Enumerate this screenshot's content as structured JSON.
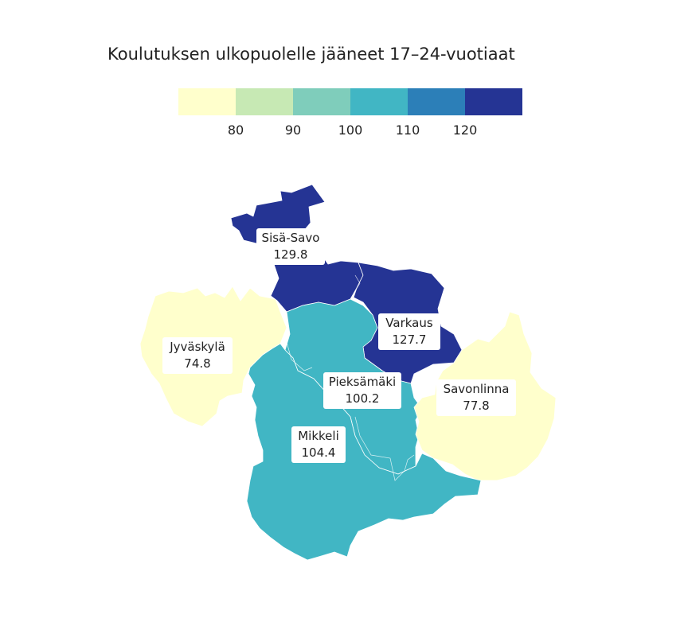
{
  "title": "Koulutuksen ulkopuolelle jääneet 17–24-vuotiaat",
  "legend": {
    "colors": [
      "#ffffcc",
      "#c7e9b4",
      "#7fcdbb",
      "#41b6c4",
      "#2c7fb8",
      "#253494"
    ],
    "ticks": [
      "80",
      "90",
      "100",
      "110",
      "120"
    ]
  },
  "regions": [
    {
      "name": "Sisä-Savo",
      "value": "129.8",
      "color": "#253494"
    },
    {
      "name": "Varkaus",
      "value": "127.7",
      "color": "#253494"
    },
    {
      "name": "Jyväskylä",
      "value": "74.8",
      "color": "#ffffcc"
    },
    {
      "name": "Pieksämäki",
      "value": "100.2",
      "color": "#41b6c4"
    },
    {
      "name": "Savonlinna",
      "value": "77.8",
      "color": "#ffffcc"
    },
    {
      "name": "Mikkeli",
      "value": "104.4",
      "color": "#41b6c4"
    }
  ]
}
